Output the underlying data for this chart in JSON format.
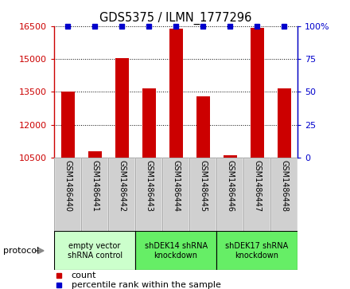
{
  "title": "GDS5375 / ILMN_1777296",
  "samples": [
    "GSM1486440",
    "GSM1486441",
    "GSM1486442",
    "GSM1486443",
    "GSM1486444",
    "GSM1486445",
    "GSM1486446",
    "GSM1486447",
    "GSM1486448"
  ],
  "counts": [
    13500,
    10780,
    15050,
    13650,
    16380,
    13280,
    10600,
    16430,
    13650
  ],
  "percentile_ranks": [
    100,
    100,
    100,
    100,
    100,
    100,
    100,
    100,
    100
  ],
  "ylim_left": [
    10500,
    16500
  ],
  "ylim_right": [
    0,
    100
  ],
  "yticks_left": [
    10500,
    12000,
    13500,
    15000,
    16500
  ],
  "yticks_right": [
    0,
    25,
    50,
    75,
    100
  ],
  "groups": [
    {
      "label": "empty vector\nshRNA control",
      "start": 0,
      "end": 3,
      "color": "#ccffcc"
    },
    {
      "label": "shDEK14 shRNA\nknockdown",
      "start": 3,
      "end": 6,
      "color": "#66ee66"
    },
    {
      "label": "shDEK17 shRNA\nknockdown",
      "start": 6,
      "end": 9,
      "color": "#66ee66"
    }
  ],
  "bar_color": "#cc0000",
  "dot_color": "#0000cc",
  "left_tick_color": "#cc0000",
  "right_tick_color": "#0000cc",
  "sample_box_color": "#d0d0d0",
  "legend_count": "count",
  "legend_percentile": "percentile rank within the sample"
}
